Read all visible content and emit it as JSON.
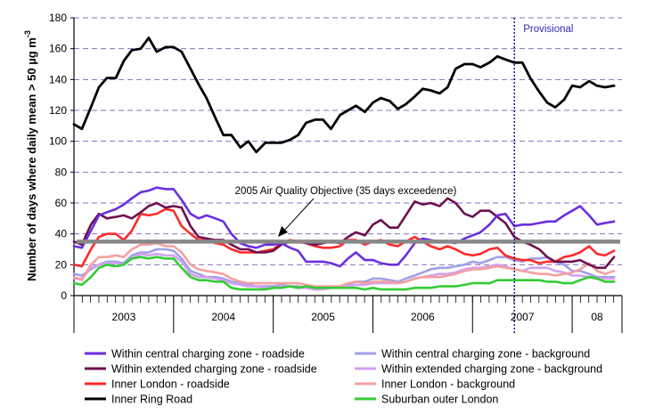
{
  "chart_data": {
    "type": "line",
    "ylabel": "Number of days where daily mean > 50 µg m",
    "ylabel_superscript": "-3",
    "ylim": [
      0,
      180
    ],
    "yticks": [
      0,
      20,
      40,
      60,
      80,
      100,
      120,
      140,
      160,
      180
    ],
    "grid": "horizontal dashed",
    "legend_position": "bottom",
    "x_years": [
      {
        "label": "2003",
        "start": 2003.0,
        "end": 2004.0
      },
      {
        "label": "2004",
        "start": 2004.0,
        "end": 2005.0
      },
      {
        "label": "2005",
        "start": 2005.0,
        "end": 2006.0
      },
      {
        "label": "2006",
        "start": 2006.0,
        "end": 2007.0
      },
      {
        "label": "2007",
        "start": 2007.0,
        "end": 2008.0
      },
      {
        "label": "08",
        "start": 2008.0,
        "end": 2008.5
      }
    ],
    "x": [
      2003.0,
      2003.08,
      2003.17,
      2003.25,
      2003.33,
      2003.42,
      2003.5,
      2003.58,
      2003.67,
      2003.75,
      2003.83,
      2003.92,
      2004.0,
      2004.08,
      2004.17,
      2004.25,
      2004.33,
      2004.42,
      2004.5,
      2004.58,
      2004.67,
      2004.75,
      2004.83,
      2004.92,
      2005.0,
      2005.08,
      2005.17,
      2005.25,
      2005.33,
      2005.42,
      2005.5,
      2005.58,
      2005.67,
      2005.75,
      2005.83,
      2005.92,
      2006.0,
      2006.08,
      2006.17,
      2006.25,
      2006.33,
      2006.42,
      2006.5,
      2006.58,
      2006.67,
      2006.75,
      2006.83,
      2006.92,
      2007.0,
      2007.08,
      2007.17,
      2007.25,
      2007.33,
      2007.42,
      2007.5,
      2007.58,
      2007.67,
      2007.75,
      2007.83,
      2007.92,
      2008.0,
      2008.08,
      2008.17,
      2008.25,
      2008.33,
      2008.42
    ],
    "objective": {
      "value": 35,
      "label": "2005 Air Quality Objective (35 days exceedence)"
    },
    "provisional": {
      "x": 2007.42,
      "label": "Provisional"
    },
    "series": [
      {
        "name": "Within central charging zone - roadside",
        "color": "#6a2ee0",
        "values": [
          32,
          31,
          42,
          52,
          54,
          56,
          59,
          63,
          67,
          68,
          70,
          69,
          69,
          62,
          53,
          50,
          52,
          50,
          48,
          40,
          34,
          32,
          31,
          33,
          33,
          34,
          31,
          29,
          22,
          22,
          22,
          21,
          19,
          24,
          28,
          23,
          23,
          21,
          20,
          20,
          26,
          34,
          37,
          36,
          35,
          35,
          34,
          37,
          39,
          41,
          46,
          52,
          53,
          45,
          46,
          46,
          47,
          48,
          48,
          52,
          55,
          58,
          52,
          46,
          47,
          48
        ]
      },
      {
        "name": "Within extended charging zone - roadside",
        "color": "#6e0f4f",
        "values": [
          35,
          33,
          46,
          53,
          50,
          51,
          52,
          50,
          54,
          58,
          60,
          57,
          58,
          57,
          45,
          38,
          37,
          36,
          36,
          33,
          30,
          30,
          28,
          28,
          29,
          33,
          35,
          35,
          34,
          33,
          34,
          35,
          34,
          38,
          41,
          39,
          46,
          49,
          44,
          44,
          52,
          61,
          59,
          60,
          58,
          63,
          60,
          53,
          51,
          55,
          55,
          51,
          47,
          38,
          35,
          33,
          30,
          25,
          22,
          22,
          22,
          23,
          20,
          18,
          18,
          25
        ]
      },
      {
        "name": "Inner London - roadside",
        "color": "#ff2a2a",
        "values": [
          20,
          19,
          30,
          38,
          40,
          40,
          36,
          42,
          53,
          52,
          53,
          56,
          55,
          45,
          40,
          36,
          36,
          34,
          33,
          30,
          28,
          28,
          28,
          29,
          30,
          34,
          36,
          35,
          34,
          32,
          31,
          31,
          32,
          36,
          36,
          33,
          35,
          36,
          33,
          32,
          35,
          38,
          35,
          32,
          30,
          32,
          30,
          27,
          26,
          27,
          30,
          31,
          26,
          24,
          23,
          23,
          21,
          22,
          22,
          25,
          26,
          28,
          32,
          27,
          26,
          29
        ]
      },
      {
        "name": "Inner Ring Road",
        "color": "#000000",
        "values": [
          111,
          108,
          122,
          135,
          141,
          141,
          152,
          159,
          160,
          167,
          158,
          161,
          161,
          158,
          147,
          137,
          128,
          115,
          104,
          104,
          96,
          100,
          93,
          99,
          99,
          99,
          101,
          104,
          112,
          114,
          114,
          108,
          117,
          120,
          123,
          119,
          125,
          128,
          126,
          121,
          124,
          129,
          134,
          133,
          131,
          135,
          147,
          150,
          150,
          148,
          151,
          155,
          153,
          151,
          151,
          141,
          132,
          125,
          122,
          127,
          136,
          135,
          139,
          136,
          135,
          136
        ]
      },
      {
        "name": "Within central charging zone - background",
        "color": "#a0a0e8",
        "values": [
          14,
          13,
          17,
          20,
          22,
          22,
          21,
          26,
          28,
          28,
          30,
          30,
          29,
          24,
          16,
          14,
          12,
          12,
          11,
          9,
          8,
          7,
          6,
          6,
          6,
          7,
          6,
          6,
          5,
          5,
          5,
          6,
          5,
          7,
          9,
          9,
          11,
          11,
          10,
          9,
          11,
          13,
          15,
          17,
          18,
          18,
          19,
          20,
          22,
          21,
          23,
          25,
          25,
          23,
          22,
          24,
          24,
          25,
          22,
          20,
          16,
          16,
          14,
          12,
          12,
          12
        ]
      },
      {
        "name": "Within extended charging zone - background",
        "color": "#d4a0f0",
        "values": [
          11,
          11,
          18,
          20,
          21,
          21,
          20,
          24,
          27,
          26,
          27,
          26,
          26,
          22,
          14,
          12,
          12,
          11,
          10,
          8,
          7,
          6,
          6,
          5,
          5,
          6,
          6,
          5,
          5,
          4,
          4,
          5,
          5,
          6,
          7,
          7,
          8,
          8,
          8,
          8,
          9,
          11,
          12,
          13,
          14,
          14,
          15,
          17,
          18,
          18,
          19,
          20,
          19,
          17,
          16,
          18,
          18,
          18,
          16,
          15,
          13,
          13,
          12,
          11,
          11,
          11
        ]
      },
      {
        "name": "Inner London - background",
        "color": "#f5a0a0",
        "values": [
          12,
          10,
          20,
          25,
          25,
          26,
          25,
          30,
          33,
          33,
          34,
          32,
          32,
          28,
          20,
          17,
          16,
          15,
          14,
          11,
          9,
          8,
          8,
          8,
          8,
          8,
          8,
          8,
          7,
          6,
          6,
          6,
          6,
          8,
          9,
          8,
          9,
          9,
          9,
          8,
          9,
          11,
          12,
          12,
          12,
          13,
          14,
          16,
          17,
          17,
          18,
          19,
          18,
          17,
          16,
          15,
          14,
          14,
          13,
          14,
          15,
          17,
          21,
          16,
          14,
          16
        ]
      },
      {
        "name": "Suburban outer London",
        "color": "#33cc33",
        "values": [
          8,
          7,
          12,
          18,
          20,
          19,
          20,
          24,
          25,
          24,
          25,
          24,
          24,
          18,
          12,
          10,
          10,
          9,
          9,
          5,
          4,
          4,
          4,
          4,
          5,
          5,
          6,
          5,
          6,
          5,
          5,
          5,
          5,
          5,
          5,
          4,
          5,
          4,
          4,
          4,
          4,
          5,
          5,
          5,
          6,
          6,
          6,
          7,
          8,
          8,
          8,
          10,
          10,
          10,
          10,
          10,
          10,
          9,
          9,
          8,
          8,
          10,
          12,
          11,
          9,
          9
        ]
      }
    ]
  }
}
